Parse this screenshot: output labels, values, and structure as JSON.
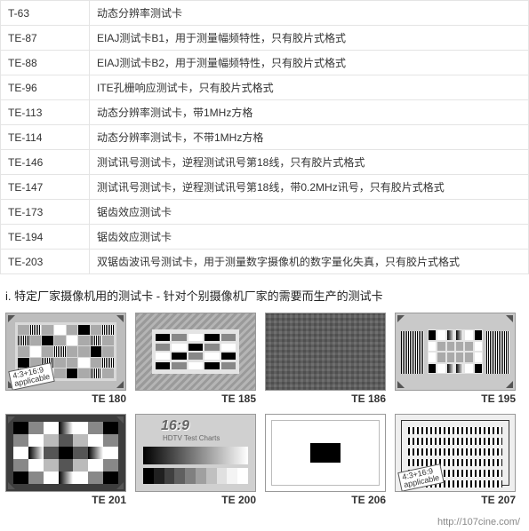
{
  "table": {
    "rows": [
      {
        "code": "T-63",
        "desc": "动态分辨率测试卡"
      },
      {
        "code": "TE-87",
        "desc": "EIAJ测试卡B1，用于测量幅频特性，只有胶片式格式"
      },
      {
        "code": "TE-88",
        "desc": "EIAJ测试卡B2，用于测量幅频特性，只有胶片式格式"
      },
      {
        "code": "TE-96",
        "desc": "ITE孔栅响应测试卡，只有胶片式格式"
      },
      {
        "code": "TE-113",
        "desc": "动态分辨率测试卡，带1MHz方格"
      },
      {
        "code": "TE-114",
        "desc": "动态分辨率测试卡，不带1MHz方格"
      },
      {
        "code": "TE-146",
        "desc": "测试讯号测试卡，逆程测试讯号第18线，只有胶片式格式"
      },
      {
        "code": "TE-147",
        "desc": "测试讯号测试卡，逆程测试讯号第18线，带0.2MHz讯号，只有胶片式格式"
      },
      {
        "code": "TE-173",
        "desc": "锯齿效应测试卡"
      },
      {
        "code": "TE-194",
        "desc": "锯齿效应测试卡"
      },
      {
        "code": "TE-203",
        "desc": "双锯齿波讯号测试卡，用于测量数字摄像机的数字量化失真，只有胶片式格式"
      }
    ]
  },
  "section_heading": "i. 特定厂家摄像机用的测试卡 - 针对个别摄像机厂家的需要而生产的测试卡",
  "cards": [
    {
      "label": "TE 180",
      "kind": "t180",
      "stamp": "4:3+16:9\napplicable"
    },
    {
      "label": "TE 185",
      "kind": "t185"
    },
    {
      "label": "TE 186",
      "kind": "t186"
    },
    {
      "label": "TE 195",
      "kind": "t195"
    },
    {
      "label": "TE 201",
      "kind": "t201"
    },
    {
      "label": "TE 200",
      "kind": "t200",
      "logo": "16:9",
      "subtitle": "HDTV Test Charts"
    },
    {
      "label": "TE 206",
      "kind": "t206"
    },
    {
      "label": "TE 207",
      "kind": "t207",
      "stamp": "4:3+16:9\napplicable"
    }
  ],
  "step_colors": [
    "#000000",
    "#202020",
    "#404040",
    "#606060",
    "#808080",
    "#a0a0a0",
    "#c0c0c0",
    "#e0e0e0",
    "#f4f4f4",
    "#ffffff"
  ],
  "footer_url": "http://107cine.com/"
}
